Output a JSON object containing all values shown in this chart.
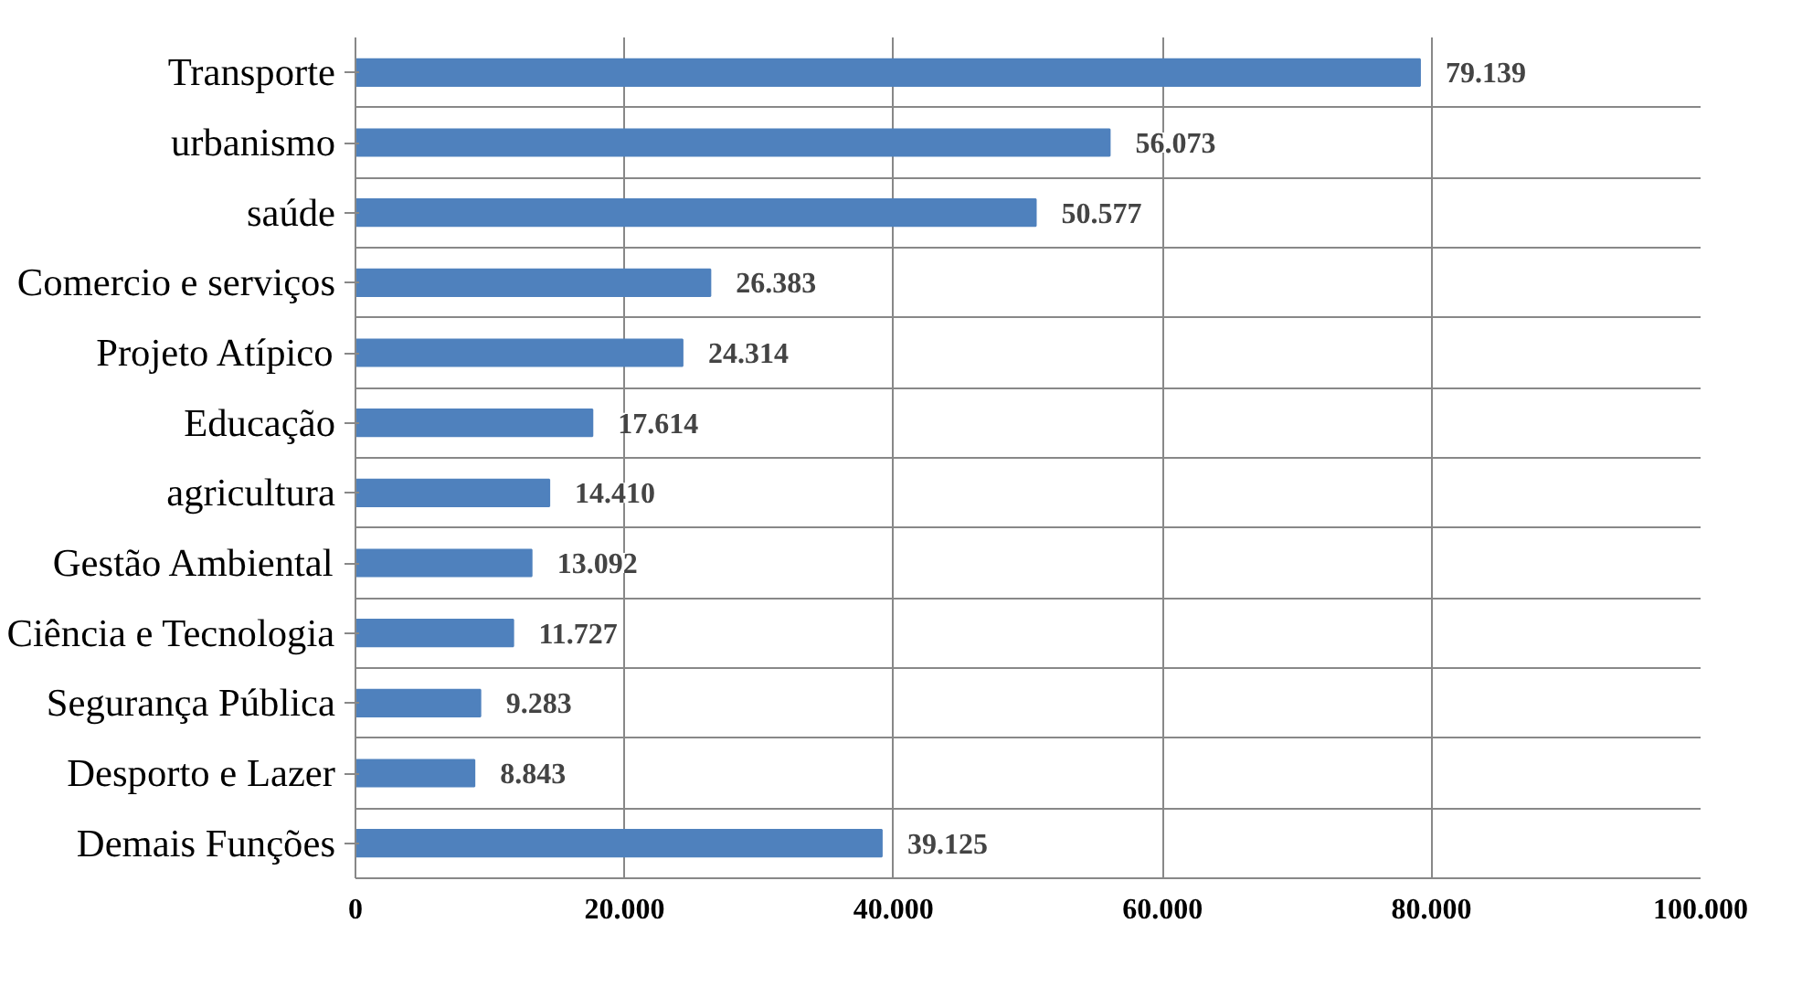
{
  "chart_data": {
    "type": "bar",
    "orientation": "horizontal",
    "categories": [
      "Transporte",
      "urbanismo",
      "saúde",
      "Comercio e serviços",
      "Projeto Atípico",
      "Educação",
      "agricultura",
      "Gestão Ambiental",
      "Ciência e Tecnologia",
      "Segurança Pública",
      "Desporto e Lazer",
      "Demais Funções"
    ],
    "values": [
      79139,
      56073,
      50577,
      26383,
      24314,
      17614,
      14410,
      13092,
      11727,
      9283,
      8843,
      39125
    ],
    "value_labels": [
      "79.139",
      "56.073",
      "50.577",
      "26.383",
      "24.314",
      "17.614",
      "14.410",
      "13.092",
      "11.727",
      "9.283",
      "8.843",
      "39.125"
    ],
    "color": "#4f81bd",
    "xlim": [
      0,
      100000
    ],
    "xticks": [
      {
        "value": 0,
        "label": "0"
      },
      {
        "value": 20000,
        "label": "20.000"
      },
      {
        "value": 40000,
        "label": "40.000"
      },
      {
        "value": 60000,
        "label": "60.000"
      },
      {
        "value": 80000,
        "label": "80.000"
      },
      {
        "value": 100000,
        "label": "100.000"
      }
    ],
    "grid": true
  }
}
